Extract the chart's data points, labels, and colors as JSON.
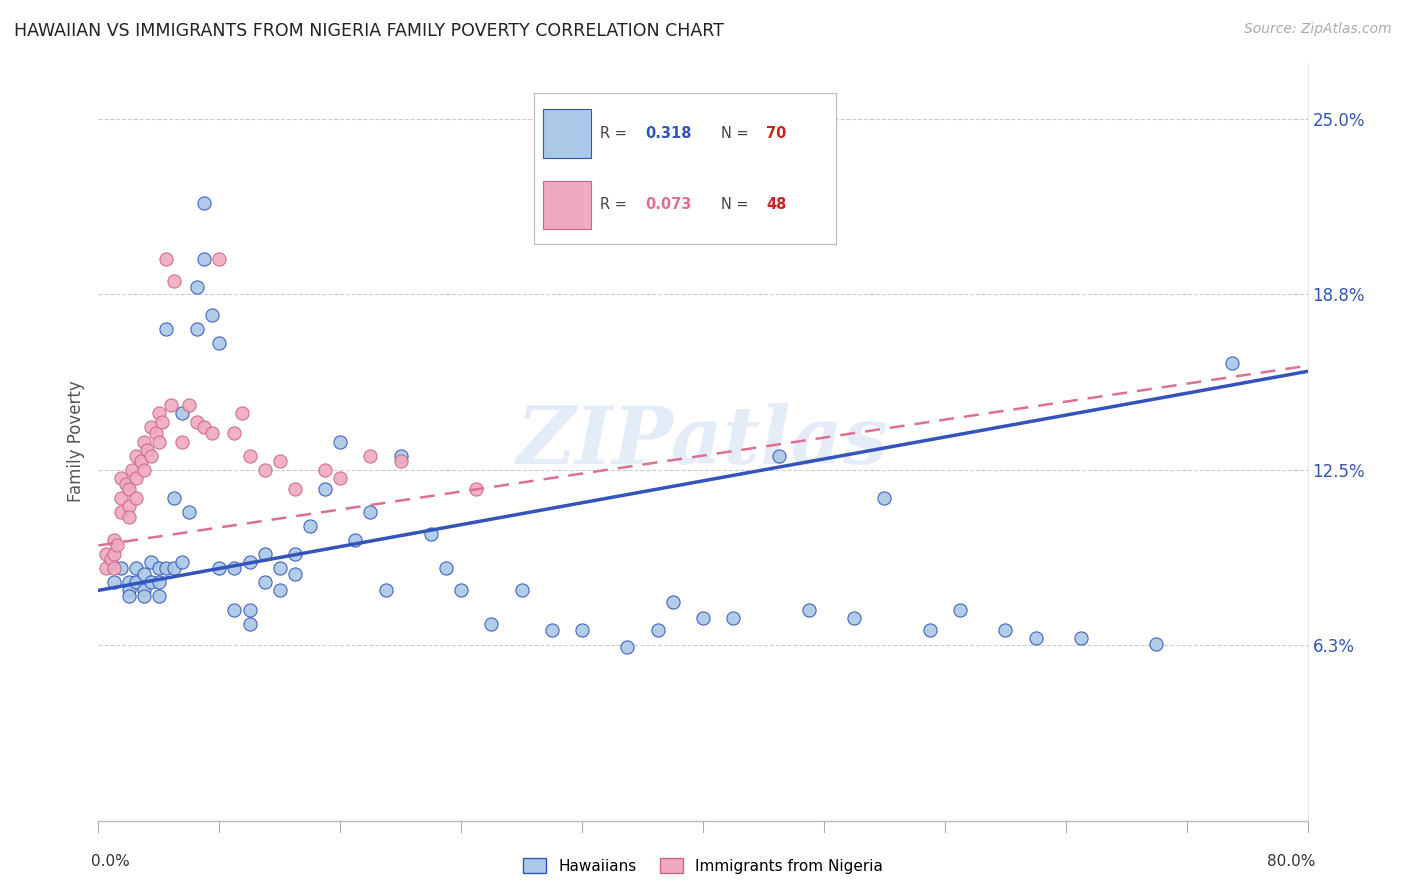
{
  "title": "HAWAIIAN VS IMMIGRANTS FROM NIGERIA FAMILY POVERTY CORRELATION CHART",
  "source": "Source: ZipAtlas.com",
  "ylabel": "Family Poverty",
  "ytick_vals": [
    0.0625,
    0.125,
    0.1875,
    0.25
  ],
  "ytick_labels": [
    "6.3%",
    "12.5%",
    "18.8%",
    "25.0%"
  ],
  "xlim": [
    0.0,
    0.8
  ],
  "ylim": [
    0.0,
    0.27
  ],
  "hawaiians_R": 0.318,
  "hawaiians_N": 70,
  "nigeria_R": 0.073,
  "nigeria_N": 48,
  "hawaiian_color": "#aac8e8",
  "nigeria_color": "#f0aac0",
  "hawaiian_line_color": "#3355bb",
  "nigeria_line_color": "#dd7090",
  "watermark": "ZIPatlas",
  "hawaiians_x": [
    0.01,
    0.015,
    0.02,
    0.02,
    0.02,
    0.025,
    0.025,
    0.03,
    0.03,
    0.03,
    0.035,
    0.035,
    0.04,
    0.04,
    0.04,
    0.045,
    0.045,
    0.05,
    0.05,
    0.055,
    0.055,
    0.06,
    0.065,
    0.065,
    0.07,
    0.07,
    0.075,
    0.08,
    0.08,
    0.09,
    0.09,
    0.1,
    0.1,
    0.1,
    0.11,
    0.11,
    0.12,
    0.12,
    0.13,
    0.13,
    0.14,
    0.15,
    0.16,
    0.17,
    0.18,
    0.19,
    0.2,
    0.22,
    0.23,
    0.24,
    0.26,
    0.28,
    0.3,
    0.32,
    0.35,
    0.37,
    0.38,
    0.4,
    0.42,
    0.45,
    0.47,
    0.5,
    0.52,
    0.55,
    0.57,
    0.6,
    0.62,
    0.65,
    0.7,
    0.75
  ],
  "hawaiians_y": [
    0.085,
    0.09,
    0.085,
    0.082,
    0.08,
    0.09,
    0.085,
    0.088,
    0.082,
    0.08,
    0.092,
    0.085,
    0.09,
    0.085,
    0.08,
    0.175,
    0.09,
    0.115,
    0.09,
    0.145,
    0.092,
    0.11,
    0.19,
    0.175,
    0.2,
    0.22,
    0.18,
    0.17,
    0.09,
    0.09,
    0.075,
    0.092,
    0.075,
    0.07,
    0.095,
    0.085,
    0.09,
    0.082,
    0.095,
    0.088,
    0.105,
    0.118,
    0.135,
    0.1,
    0.11,
    0.082,
    0.13,
    0.102,
    0.09,
    0.082,
    0.07,
    0.082,
    0.068,
    0.068,
    0.062,
    0.068,
    0.078,
    0.072,
    0.072,
    0.13,
    0.075,
    0.072,
    0.115,
    0.068,
    0.075,
    0.068,
    0.065,
    0.065,
    0.063,
    0.163
  ],
  "nigeria_x": [
    0.005,
    0.005,
    0.008,
    0.01,
    0.01,
    0.01,
    0.012,
    0.015,
    0.015,
    0.015,
    0.018,
    0.02,
    0.02,
    0.02,
    0.022,
    0.025,
    0.025,
    0.025,
    0.028,
    0.03,
    0.03,
    0.032,
    0.035,
    0.035,
    0.038,
    0.04,
    0.04,
    0.042,
    0.045,
    0.048,
    0.05,
    0.055,
    0.06,
    0.065,
    0.07,
    0.075,
    0.08,
    0.09,
    0.095,
    0.1,
    0.11,
    0.12,
    0.13,
    0.15,
    0.16,
    0.18,
    0.2,
    0.25
  ],
  "nigeria_y": [
    0.095,
    0.09,
    0.093,
    0.1,
    0.095,
    0.09,
    0.098,
    0.122,
    0.115,
    0.11,
    0.12,
    0.118,
    0.112,
    0.108,
    0.125,
    0.13,
    0.122,
    0.115,
    0.128,
    0.135,
    0.125,
    0.132,
    0.14,
    0.13,
    0.138,
    0.145,
    0.135,
    0.142,
    0.2,
    0.148,
    0.192,
    0.135,
    0.148,
    0.142,
    0.14,
    0.138,
    0.2,
    0.138,
    0.145,
    0.13,
    0.125,
    0.128,
    0.118,
    0.125,
    0.122,
    0.13,
    0.128,
    0.118
  ],
  "blue_line_x0": 0.0,
  "blue_line_y0": 0.082,
  "blue_line_x1": 0.8,
  "blue_line_y1": 0.16,
  "pink_line_x0": 0.0,
  "pink_line_y0": 0.098,
  "pink_line_x1": 0.8,
  "pink_line_y1": 0.162
}
